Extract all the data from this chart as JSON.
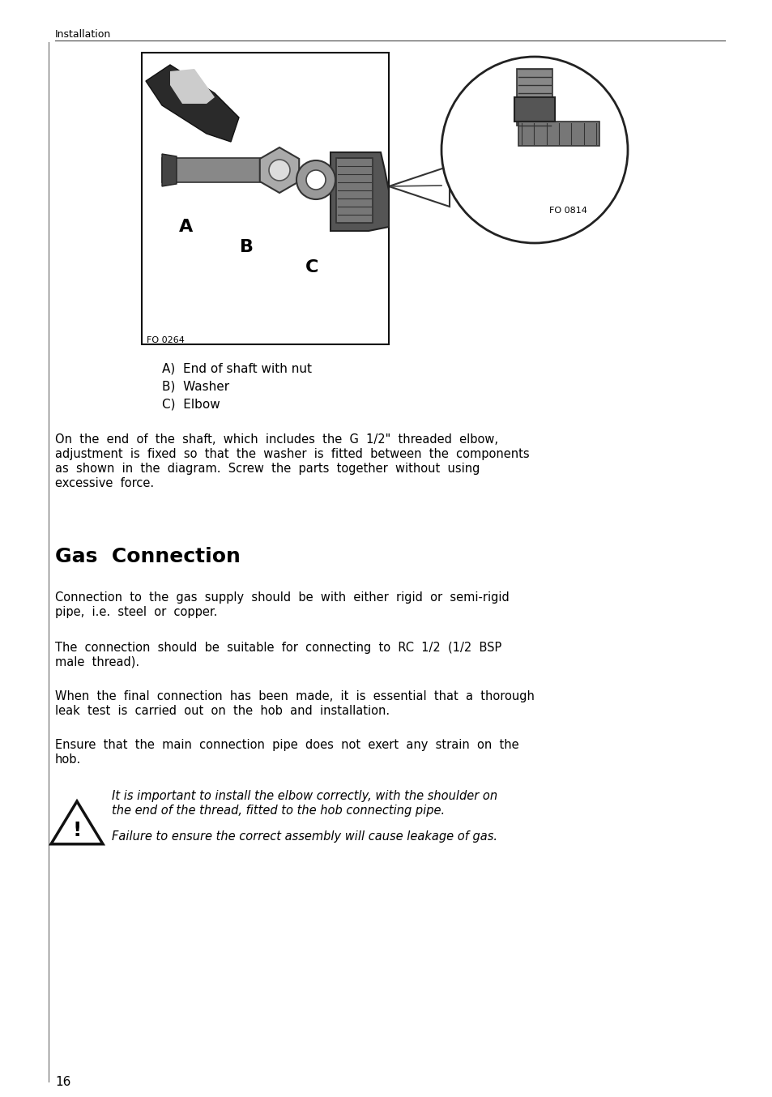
{
  "page_background": "#ffffff",
  "page_number": "16",
  "header_text": "Installation",
  "figure_label_fo0264": "FO 0264",
  "figure_label_fo0814": "FO 0814",
  "parts_line1": "A)  End of shaft with nut",
  "parts_line2": "B)  Washer",
  "parts_line3": "C)  Elbow",
  "body_paragraph1_lines": [
    "On  the  end  of  the  shaft,  which  includes  the  G  1/2\"  threaded  elbow,",
    "adjustment  is  fixed  so  that  the  washer  is  fitted  between  the  components",
    "as  shown  in  the  diagram.  Screw  the  parts  together  without  using",
    "excessive  force."
  ],
  "section_title": "Gas  Connection",
  "body_paragraph2_lines": [
    "Connection  to  the  gas  supply  should  be  with  either  rigid  or  semi-rigid",
    "pipe,  i.e.  steel  or  copper."
  ],
  "body_paragraph3_lines": [
    "The  connection  should  be  suitable  for  connecting  to  RC  1/2  (1/2  BSP",
    "male  thread)."
  ],
  "body_paragraph4_lines": [
    "When  the  final  connection  has  been  made,  it  is  essential  that  a  thorough",
    "leak  test  is  carried  out  on  the  hob  and  installation."
  ],
  "body_paragraph5_lines": [
    "Ensure  that  the  main  connection  pipe  does  not  exert  any  strain  on  the",
    "hob."
  ],
  "warning_italic1_lines": [
    "It is important to install the elbow correctly, with the shoulder on",
    "the end of the thread, fitted to the hob connecting pipe."
  ],
  "warning_italic2": "Failure to ensure the correct assembly will cause leakage of gas.",
  "text_color": "#000000"
}
